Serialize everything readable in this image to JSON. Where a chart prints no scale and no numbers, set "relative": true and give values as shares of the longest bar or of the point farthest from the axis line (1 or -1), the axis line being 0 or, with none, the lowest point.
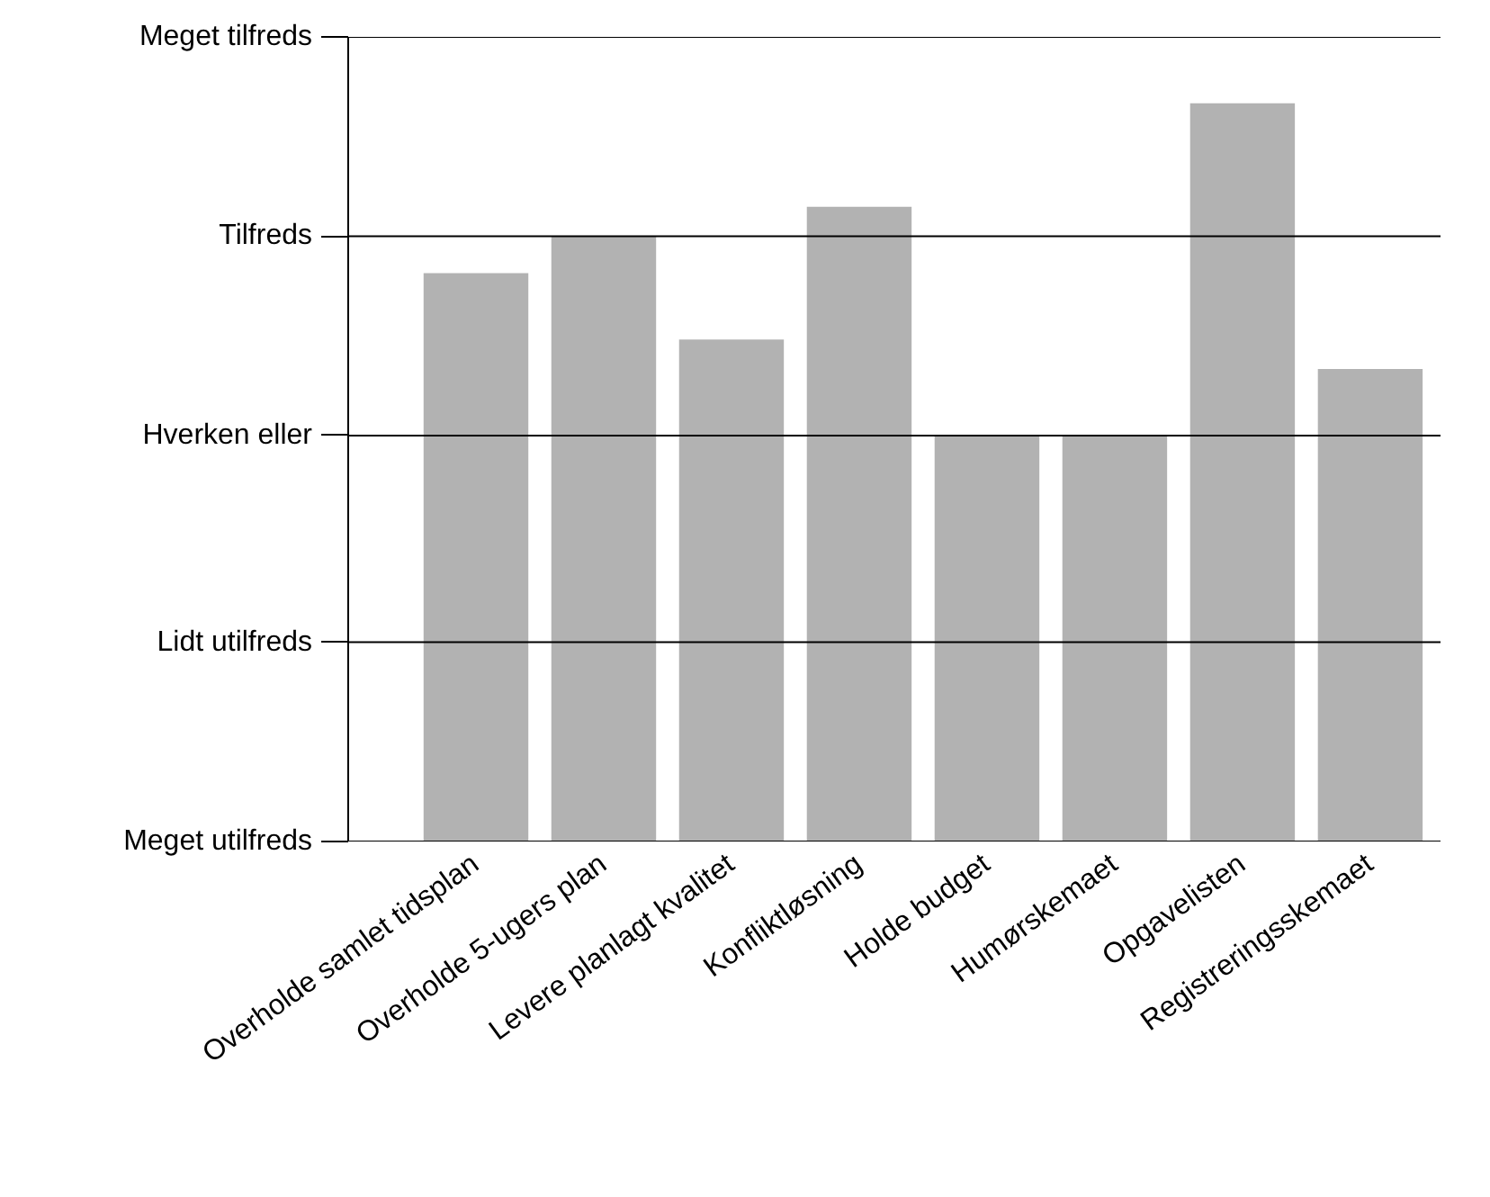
{
  "chart_data": {
    "type": "bar",
    "categories": [
      "Overholde samlet tidsplan",
      "Overholde 5-ugers plan",
      "Levere planlagt kvalitet",
      "Konfliktløsning",
      "Holde budget",
      "Humørskemaet",
      "Opgavelisten",
      "Registreringsskemaet"
    ],
    "values": [
      0.77,
      0.82,
      0.68,
      0.86,
      0.55,
      0.55,
      1,
      0.64
    ],
    "color": "#b2b2b2",
    "relative": true,
    "ref_lines": [
      {
        "axis": "y",
        "value": 0,
        "label": "Meget utilfreds",
        "color": "#000000"
      },
      {
        "axis": "y",
        "value": 0.27,
        "label": "Lidt utilfreds",
        "color": "#000000"
      },
      {
        "axis": "y",
        "value": 0.55,
        "label": "Hverken eller",
        "color": "#000000"
      },
      {
        "axis": "y",
        "value": 0.82,
        "label": "Tilfreds",
        "color": "#000000"
      },
      {
        "axis": "y",
        "value": 1.09,
        "label": "Meget tilfreds",
        "color": "#000000"
      }
    ]
  }
}
